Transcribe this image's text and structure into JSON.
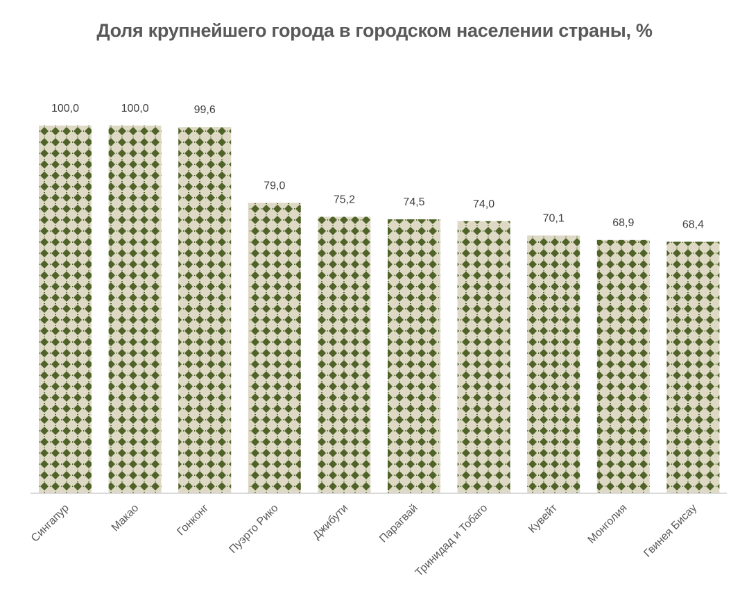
{
  "chart_data": {
    "type": "bar",
    "title": "Доля крупнейшего города в городском населении страны, %",
    "categories": [
      "Сингапур",
      "Макао",
      "Гонконг",
      "Пуэрто Рико",
      "Джибути",
      "Парагвай",
      "Тринидад и Тобаго",
      "Кувейт",
      "Монголия",
      "Гвинея Бисау"
    ],
    "values": [
      100.0,
      100.0,
      99.6,
      79.0,
      75.2,
      74.5,
      74.0,
      70.1,
      68.9,
      68.4
    ],
    "data_labels": [
      "100,0",
      "100,0",
      "99,6",
      "79,0",
      "75,2",
      "74,5",
      "74,0",
      "70,1",
      "68,9",
      "68,4"
    ],
    "xlabel": "",
    "ylabel": "",
    "ylim": [
      0,
      100
    ],
    "grid": false,
    "legend": "none",
    "colors": {
      "pattern_background": "#ddd9c4",
      "pattern_foreground": "#4f6228",
      "axis": "#d9d9d9",
      "text": "#595959"
    }
  }
}
